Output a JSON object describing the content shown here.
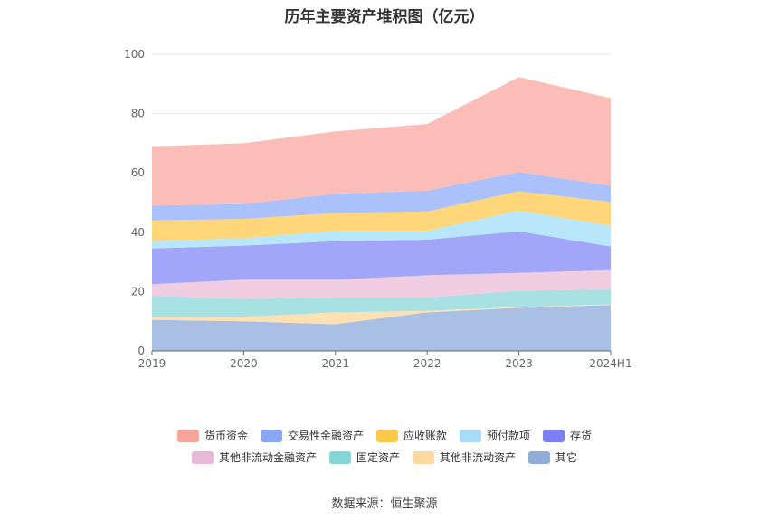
{
  "chart_data": {
    "type": "area",
    "stacked": true,
    "title": "历年主要资产堆积图（亿元）",
    "source": "数据来源：恒生聚源",
    "x": [
      "2019",
      "2020",
      "2021",
      "2022",
      "2023",
      "2024H1"
    ],
    "ylim": [
      0,
      100
    ],
    "yticks": [
      0,
      20,
      40,
      60,
      80,
      100
    ],
    "grid": true,
    "legend_position": "bottom",
    "series": [
      {
        "name": "其它",
        "color": "#a9bfe3",
        "values": [
          10.5,
          10.0,
          9.0,
          13.0,
          14.5,
          15.5
        ]
      },
      {
        "name": "其他非流动资产",
        "color": "#fde1b3",
        "values": [
          1.0,
          1.5,
          4.0,
          0.5,
          0.3,
          0.2
        ]
      },
      {
        "name": "固定资产",
        "color": "#a8e1e1",
        "values": [
          7.0,
          6.0,
          5.0,
          4.5,
          5.5,
          5.0
        ]
      },
      {
        "name": "其他非流动金融资产",
        "color": "#f0cde1",
        "values": [
          4.0,
          6.5,
          6.0,
          7.5,
          6.0,
          6.5
        ]
      },
      {
        "name": "存货",
        "color": "#a1a6f8",
        "values": [
          12.0,
          11.5,
          13.0,
          12.0,
          14.0,
          8.0
        ]
      },
      {
        "name": "预付款项",
        "color": "#b8e7fb",
        "values": [
          2.5,
          2.5,
          3.5,
          3.0,
          7.0,
          7.0
        ]
      },
      {
        "name": "应收账款",
        "color": "#ffd67a",
        "values": [
          7.0,
          6.5,
          6.0,
          6.5,
          6.5,
          8.0
        ]
      },
      {
        "name": "交易性金融资产",
        "color": "#abc1fb",
        "values": [
          5.0,
          5.0,
          6.5,
          7.0,
          6.5,
          5.5
        ]
      },
      {
        "name": "货币资金",
        "color": "#fbbdb7",
        "values": [
          20.0,
          20.5,
          21.0,
          22.5,
          32.0,
          29.5
        ]
      }
    ],
    "legend": [
      {
        "name": "货币资金",
        "color": "#f8a49b"
      },
      {
        "name": "交易性金融资产",
        "color": "#89a7f7"
      },
      {
        "name": "应收账款",
        "color": "#fcc94a"
      },
      {
        "name": "预付款项",
        "color": "#a7dcf8"
      },
      {
        "name": "存货",
        "color": "#7b80f2"
      },
      {
        "name": "其他非流动金融资产",
        "color": "#e8b8d8"
      },
      {
        "name": "固定资产",
        "color": "#84d5d5"
      },
      {
        "name": "其他非流动资产",
        "color": "#fcd9a3"
      },
      {
        "name": "其它",
        "color": "#8fadd9"
      }
    ]
  }
}
